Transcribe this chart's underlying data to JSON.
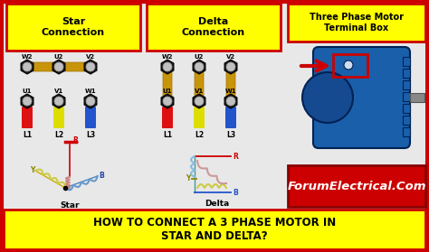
{
  "bg_color": "#e8e8e8",
  "border_color": "#cc0000",
  "title_text": "HOW TO CONNECT A 3 PHASE MOTOR IN\nSTAR AND DELTA?",
  "title_bg": "#ffff00",
  "title_fg": "#000000",
  "star_title": "Star\nConnection",
  "delta_title": "Delta\nConnection",
  "terminal_box_text": "Three Phase Motor\nTerminal Box",
  "forum_text": "ForumElectrical.Com",
  "forum_bg": "#cc0000",
  "forum_fg": "#ffffff",
  "star_label": "Star",
  "delta_label": "Delta"
}
